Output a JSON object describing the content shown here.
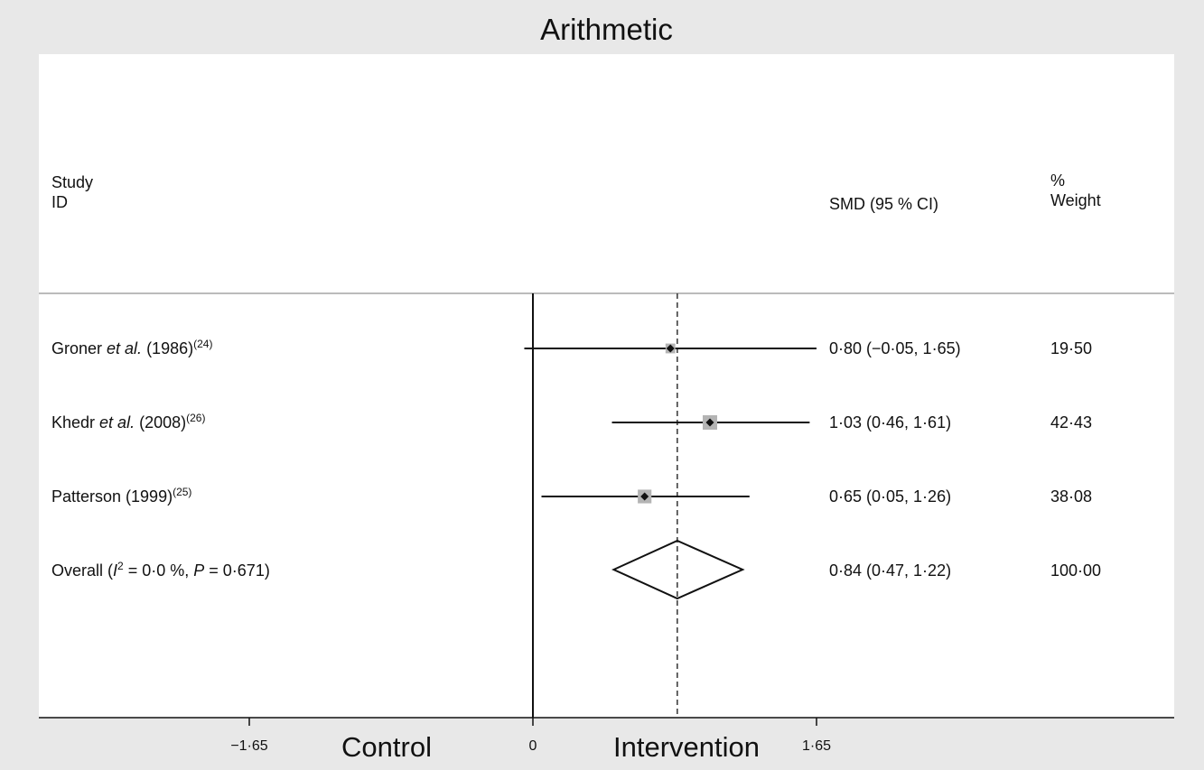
{
  "chart_data": {
    "type": "forest",
    "title": "Arithmetic",
    "headers": {
      "study": "Study\nID",
      "effect": "SMD (95 % CI)",
      "weight": "%\nWeight"
    },
    "x_ticks": [
      {
        "value": -1.65,
        "label": "−1·65"
      },
      {
        "value": 0,
        "label": "0"
      },
      {
        "value": 1.65,
        "label": "1·65"
      }
    ],
    "xlim": [
      -2.88,
      3.73
    ],
    "direction_labels": {
      "left": "Control",
      "right": "Intervention"
    },
    "null_line": 0,
    "pooled_line": 0.84,
    "studies": [
      {
        "name_plain": "Groner ",
        "name_italic": "et al.",
        "name_rest": " (1986)",
        "ref": "(24)",
        "smd": 0.8,
        "lo": -0.05,
        "hi": 1.65,
        "ci_text": "0·80 (−0·05, 1·65)",
        "weight": 19.5,
        "weight_text": "19·50"
      },
      {
        "name_plain": "Khedr ",
        "name_italic": "et al.",
        "name_rest": " (2008)",
        "ref": "(26)",
        "smd": 1.03,
        "lo": 0.46,
        "hi": 1.61,
        "ci_text": "1·03 (0·46, 1·61)",
        "weight": 42.43,
        "weight_text": "42·43"
      },
      {
        "name_plain": "Patterson (1999)",
        "name_italic": "",
        "name_rest": "",
        "ref": "(25)",
        "smd": 0.65,
        "lo": 0.05,
        "hi": 1.26,
        "ci_text": "0·65 (0·05, 1·26)",
        "weight": 38.08,
        "weight_text": "38·08"
      }
    ],
    "overall": {
      "label_prefix": "Overall (",
      "i2_symbol": "I",
      "i2_sup": "2",
      "i2_text": " = 0·0 %, ",
      "p_symbol": "P",
      "p_text": " = 0·671)",
      "smd": 0.84,
      "lo": 0.47,
      "hi": 1.22,
      "ci_text": "0·84 (0·47, 1·22)",
      "weight_text": "100·00"
    }
  }
}
